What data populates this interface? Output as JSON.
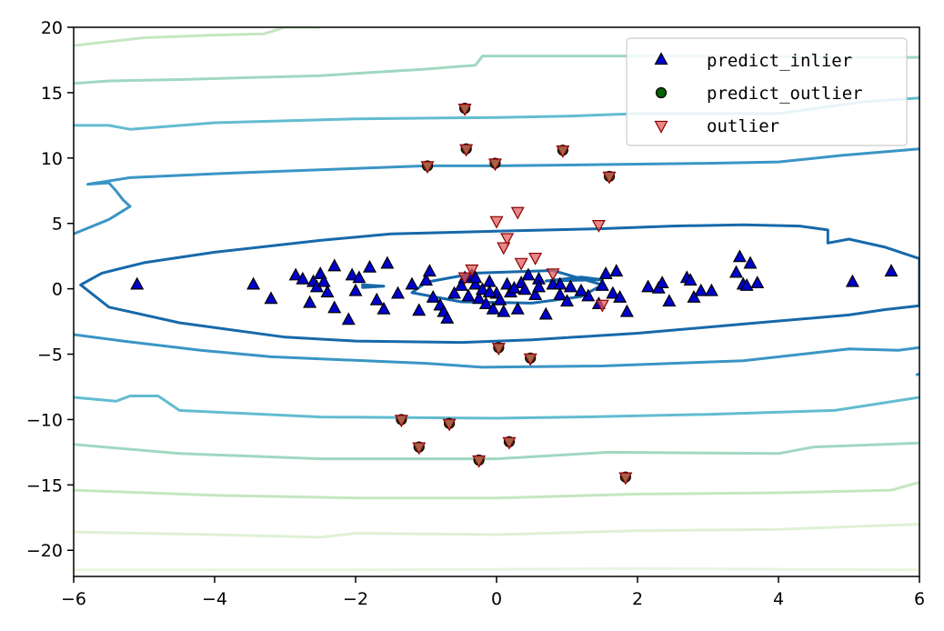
{
  "chart_data": {
    "type": "scatter",
    "title": "",
    "xlabel": "",
    "ylabel": "",
    "xlim": [
      -6,
      6
    ],
    "ylim": [
      -22,
      20
    ],
    "x_ticks": [
      -6,
      -4,
      -2,
      0,
      2,
      4,
      6
    ],
    "y_ticks": [
      -20,
      -15,
      -10,
      -5,
      0,
      5,
      10,
      15,
      20
    ],
    "x_tick_labels": [
      "−6",
      "−4",
      "−2",
      "0",
      "2",
      "4",
      "6"
    ],
    "y_tick_labels": [
      "−20",
      "−15",
      "−10",
      "−5",
      "0",
      "5",
      "10",
      "15",
      "20"
    ],
    "grid": false,
    "legend": {
      "position": "top-right",
      "entries": [
        {
          "label": "predict_inlier",
          "marker": "triangle-up",
          "color": "#0000cd"
        },
        {
          "label": "predict_outlier",
          "marker": "circle",
          "color": "#006400"
        },
        {
          "label": "outlier",
          "marker": "triangle-down",
          "color": "#e06060"
        }
      ]
    },
    "contours": [
      {
        "color": "#e8f5e1",
        "points": [
          [
            -6,
            -21.5
          ],
          [
            -2,
            -21.5
          ],
          [
            2,
            -21.4
          ],
          [
            6,
            -21.5
          ]
        ]
      },
      {
        "color": "#dff1d6",
        "points": [
          [
            -6,
            -18.6
          ],
          [
            -4,
            -18.8
          ],
          [
            -2.5,
            -19
          ],
          [
            -2,
            -18.7
          ],
          [
            0,
            -18.8
          ],
          [
            2,
            -18.5
          ],
          [
            4,
            -18.4
          ],
          [
            6,
            -18
          ]
        ]
      },
      {
        "color": "#c4e6c0",
        "points": [
          [
            -6,
            -15.4
          ],
          [
            -4,
            -15.8
          ],
          [
            -2,
            -16
          ],
          [
            0,
            -16
          ],
          [
            2,
            -15.7
          ],
          [
            4,
            -15.6
          ],
          [
            5.6,
            -15.4
          ],
          [
            6,
            -14.8
          ]
        ]
      },
      {
        "color": "#9fd8c0",
        "points": [
          [
            -6,
            -11.9
          ],
          [
            -4.5,
            -12.6
          ],
          [
            -2.5,
            -13
          ],
          [
            0,
            -13
          ],
          [
            1.6,
            -12.5
          ],
          [
            4,
            -12.6
          ],
          [
            4.5,
            -12.1
          ],
          [
            6,
            -11.8
          ]
        ]
      },
      {
        "color": "#62bcd0",
        "points": [
          [
            -6,
            -8.3
          ],
          [
            -5.4,
            -8.6
          ],
          [
            -5.2,
            -8.2
          ],
          [
            -4.8,
            -8.2
          ],
          [
            -4.5,
            -9.3
          ],
          [
            -2.5,
            -9.8
          ],
          [
            0,
            -9.9
          ],
          [
            1.2,
            -9.8
          ],
          [
            3,
            -9.6
          ],
          [
            4.8,
            -9.3
          ],
          [
            6,
            -8.3
          ]
        ]
      },
      {
        "color": "#3a95c5",
        "points": [
          [
            -6,
            -3.5
          ],
          [
            -5.3,
            -4
          ],
          [
            -4.2,
            -4.7
          ],
          [
            -3.2,
            -5.2
          ],
          [
            -1,
            -5.7
          ],
          [
            -0.2,
            -6
          ],
          [
            1.5,
            -5.9
          ],
          [
            3.5,
            -5.5
          ],
          [
            5,
            -4.6
          ],
          [
            5.7,
            -4.7
          ],
          [
            6,
            -4.5
          ]
        ]
      },
      {
        "color": "#3a95c5",
        "points": [
          [
            5.95,
            -6.6
          ],
          [
            6,
            -6.5
          ]
        ]
      },
      {
        "color": "#3a95c5",
        "points": [
          [
            -6,
            4.2
          ],
          [
            -5.5,
            5.3
          ],
          [
            -5.2,
            6.3
          ],
          [
            -5.3,
            6.8
          ],
          [
            -5.4,
            7.5
          ],
          [
            -5.5,
            8.1
          ],
          [
            -5.8,
            8
          ],
          [
            -5.2,
            8.5
          ],
          [
            -4,
            8.8
          ],
          [
            -1,
            9.4
          ],
          [
            0,
            9.4
          ],
          [
            1.5,
            9.5
          ],
          [
            3,
            9.6
          ],
          [
            4,
            9.7
          ],
          [
            4.9,
            10.2
          ],
          [
            6,
            10.7
          ]
        ]
      },
      {
        "color": "#62bcd0",
        "points": [
          [
            -6,
            12.5
          ],
          [
            -5.5,
            12.5
          ],
          [
            -5.2,
            12.2
          ],
          [
            -4,
            12.7
          ],
          [
            -2,
            13
          ],
          [
            0,
            13.1
          ],
          [
            1,
            13.2
          ],
          [
            2,
            13.4
          ],
          [
            4,
            13.4
          ],
          [
            5.2,
            14.3
          ],
          [
            6,
            14.6
          ]
        ]
      },
      {
        "color": "#9fd8c0",
        "points": [
          [
            -6,
            15.7
          ],
          [
            -5.5,
            15.9
          ],
          [
            -4.5,
            16
          ],
          [
            -2.5,
            16.3
          ],
          [
            -1,
            16.8
          ],
          [
            -0.3,
            17.1
          ],
          [
            -0.2,
            17.8
          ],
          [
            1,
            17.8
          ],
          [
            3,
            17.8
          ],
          [
            5,
            17.7
          ],
          [
            6,
            17.7
          ]
        ]
      },
      {
        "color": "#c4e6c0",
        "points": [
          [
            -6,
            18.6
          ],
          [
            -5,
            19.2
          ],
          [
            -4,
            19.4
          ],
          [
            -3.3,
            19.5
          ],
          [
            -3,
            20
          ],
          [
            -2.5,
            20
          ]
        ]
      },
      {
        "color": "#1769aa",
        "closed": true,
        "points": [
          [
            -5.9,
            0.3
          ],
          [
            -5.6,
            1.2
          ],
          [
            -5,
            2
          ],
          [
            -4,
            2.8
          ],
          [
            -2.5,
            3.7
          ],
          [
            -1.5,
            4.2
          ],
          [
            0,
            4.4
          ],
          [
            1.5,
            4.6
          ],
          [
            2.5,
            4.8
          ],
          [
            3.5,
            4.9
          ],
          [
            4.3,
            4.8
          ],
          [
            4.7,
            4.5
          ],
          [
            4.7,
            3.5
          ],
          [
            5,
            3.8
          ],
          [
            5.5,
            3.2
          ],
          [
            6,
            2.3
          ],
          [
            6,
            -1.3
          ],
          [
            5.5,
            -1.6
          ],
          [
            5,
            -2
          ],
          [
            3.5,
            -2.7
          ],
          [
            2,
            -3.4
          ],
          [
            0.5,
            -3.9
          ],
          [
            -0.5,
            -4.1
          ],
          [
            -2,
            -4
          ],
          [
            -3,
            -3.7
          ],
          [
            -4.5,
            -2.6
          ],
          [
            -5.5,
            -1.4
          ],
          [
            -5.9,
            0.3
          ]
        ]
      },
      {
        "color": "#1769aa",
        "closed": true,
        "points": [
          [
            -1.2,
            -0.3
          ],
          [
            -0.5,
            -1
          ],
          [
            0.5,
            -1.1
          ],
          [
            1.2,
            -0.6
          ],
          [
            1.5,
            0.3
          ],
          [
            0.8,
            1.4
          ],
          [
            -0.3,
            1.2
          ],
          [
            -1,
            0.5
          ],
          [
            -1.2,
            -0.3
          ]
        ]
      },
      {
        "color": "#1769aa",
        "closed": true,
        "points": [
          [
            -1.9,
            0.1
          ],
          [
            -1.6,
            0.2
          ],
          [
            -1.9,
            0.3
          ],
          [
            -1.9,
            0.1
          ]
        ]
      },
      {
        "color": "#1769aa",
        "closed": true,
        "points": [
          [
            0.7,
            0.6
          ],
          [
            1.5,
            0.7
          ],
          [
            1.2,
            0.9
          ],
          [
            0.7,
            0.6
          ]
        ]
      }
    ],
    "series": [
      {
        "name": "predict_inlier",
        "marker": "triangle-up",
        "color": "#0000cd",
        "points": [
          [
            -5.1,
            0.3
          ],
          [
            -3.45,
            0.3
          ],
          [
            -3.2,
            -0.8
          ],
          [
            -2.85,
            1.0
          ],
          [
            -2.75,
            0.7
          ],
          [
            -2.65,
            -1.1
          ],
          [
            -2.6,
            0.5
          ],
          [
            -2.55,
            0.1
          ],
          [
            -2.5,
            1.1
          ],
          [
            -2.45,
            0.5
          ],
          [
            -2.4,
            -0.3
          ],
          [
            -2.3,
            -1.5
          ],
          [
            -2.3,
            1.7
          ],
          [
            -2.1,
            -2.4
          ],
          [
            -2.05,
            1.0
          ],
          [
            -1.95,
            0.8
          ],
          [
            -2.0,
            -0.2
          ],
          [
            -1.8,
            1.6
          ],
          [
            -1.7,
            -0.9
          ],
          [
            -1.6,
            -1.6
          ],
          [
            -1.55,
            1.9
          ],
          [
            -1.4,
            -0.4
          ],
          [
            -1.2,
            0.3
          ],
          [
            -1.1,
            -1.7
          ],
          [
            -1.0,
            0.6
          ],
          [
            -0.95,
            1.3
          ],
          [
            -0.9,
            -0.7
          ],
          [
            -0.8,
            -1.3
          ],
          [
            -0.75,
            -1.8
          ],
          [
            -0.7,
            -2.3
          ],
          [
            -0.6,
            -0.4
          ],
          [
            -0.5,
            0.2
          ],
          [
            -0.45,
            0.8
          ],
          [
            -0.4,
            -0.6
          ],
          [
            -0.35,
            1.0
          ],
          [
            -0.3,
            0.3
          ],
          [
            -0.25,
            -0.8
          ],
          [
            -0.2,
            -0.1
          ],
          [
            -0.15,
            -1.2
          ],
          [
            -0.1,
            0.5
          ],
          [
            -0.05,
            -1.6
          ],
          [
            0.0,
            -0.4
          ],
          [
            0.05,
            -0.9
          ],
          [
            0.1,
            -1.8
          ],
          [
            0.15,
            0.3
          ],
          [
            0.2,
            -0.3
          ],
          [
            0.3,
            -1.6
          ],
          [
            0.35,
            0.4
          ],
          [
            0.4,
            -0.1
          ],
          [
            0.45,
            1.0
          ],
          [
            0.55,
            -0.5
          ],
          [
            0.6,
            0.7
          ],
          [
            0.7,
            -2.0
          ],
          [
            0.8,
            0.3
          ],
          [
            0.9,
            -0.5
          ],
          [
            1.0,
            -1.0
          ],
          [
            1.05,
            0.1
          ],
          [
            1.3,
            -0.6
          ],
          [
            1.45,
            -1.2
          ],
          [
            1.5,
            0.2
          ],
          [
            1.55,
            1.1
          ],
          [
            1.65,
            -0.4
          ],
          [
            1.7,
            1.3
          ],
          [
            1.75,
            -0.7
          ],
          [
            1.85,
            -1.8
          ],
          [
            2.15,
            0.1
          ],
          [
            2.3,
            0.0
          ],
          [
            2.35,
            0.4
          ],
          [
            2.45,
            -1.0
          ],
          [
            2.7,
            0.8
          ],
          [
            2.75,
            0.6
          ],
          [
            2.8,
            -0.7
          ],
          [
            2.9,
            -0.2
          ],
          [
            3.05,
            -0.2
          ],
          [
            3.4,
            1.2
          ],
          [
            3.45,
            2.4
          ],
          [
            3.5,
            0.3
          ],
          [
            3.55,
            0.2
          ],
          [
            3.6,
            1.9
          ],
          [
            3.7,
            0.4
          ],
          [
            5.05,
            0.5
          ],
          [
            5.6,
            1.3
          ],
          [
            -0.3,
            0.8
          ],
          [
            0.9,
            0.3
          ],
          [
            0.6,
            0.1
          ],
          [
            0.25,
            0.0
          ],
          [
            -0.1,
            -0.3
          ],
          [
            1.2,
            -0.2
          ]
        ]
      },
      {
        "name": "predict_outlier",
        "marker": "circle",
        "color": "#006400",
        "points": [
          [
            -0.45,
            13.8
          ],
          [
            -0.43,
            10.7
          ],
          [
            -0.98,
            9.4
          ],
          [
            -0.02,
            9.6
          ],
          [
            0.94,
            10.6
          ],
          [
            1.6,
            8.6
          ],
          [
            0.03,
            -4.5
          ],
          [
            0.48,
            -5.3
          ],
          [
            -1.35,
            -10.0
          ],
          [
            -0.67,
            -10.3
          ],
          [
            -1.1,
            -12.1
          ],
          [
            0.18,
            -11.7
          ],
          [
            -0.25,
            -13.1
          ],
          [
            1.83,
            -14.4
          ]
        ]
      },
      {
        "name": "outlier",
        "marker": "triangle-down",
        "color": "#e06060",
        "points": [
          [
            -0.45,
            13.8
          ],
          [
            -0.43,
            10.7
          ],
          [
            -0.98,
            9.4
          ],
          [
            -0.02,
            9.6
          ],
          [
            0.94,
            10.6
          ],
          [
            1.6,
            8.6
          ],
          [
            0.03,
            -4.5
          ],
          [
            0.48,
            -5.3
          ],
          [
            -1.35,
            -10.0
          ],
          [
            -0.67,
            -10.3
          ],
          [
            -1.1,
            -12.1
          ],
          [
            0.18,
            -11.7
          ],
          [
            -0.25,
            -13.1
          ],
          [
            1.83,
            -14.4
          ],
          [
            0.3,
            5.9
          ],
          [
            0.0,
            5.2
          ],
          [
            1.45,
            4.9
          ],
          [
            0.15,
            3.9
          ],
          [
            0.1,
            3.2
          ],
          [
            0.55,
            2.4
          ],
          [
            0.35,
            2.0
          ],
          [
            -0.35,
            1.5
          ],
          [
            0.8,
            1.2
          ],
          [
            1.5,
            -1.2
          ],
          [
            -0.45,
            0.9
          ]
        ]
      }
    ]
  }
}
